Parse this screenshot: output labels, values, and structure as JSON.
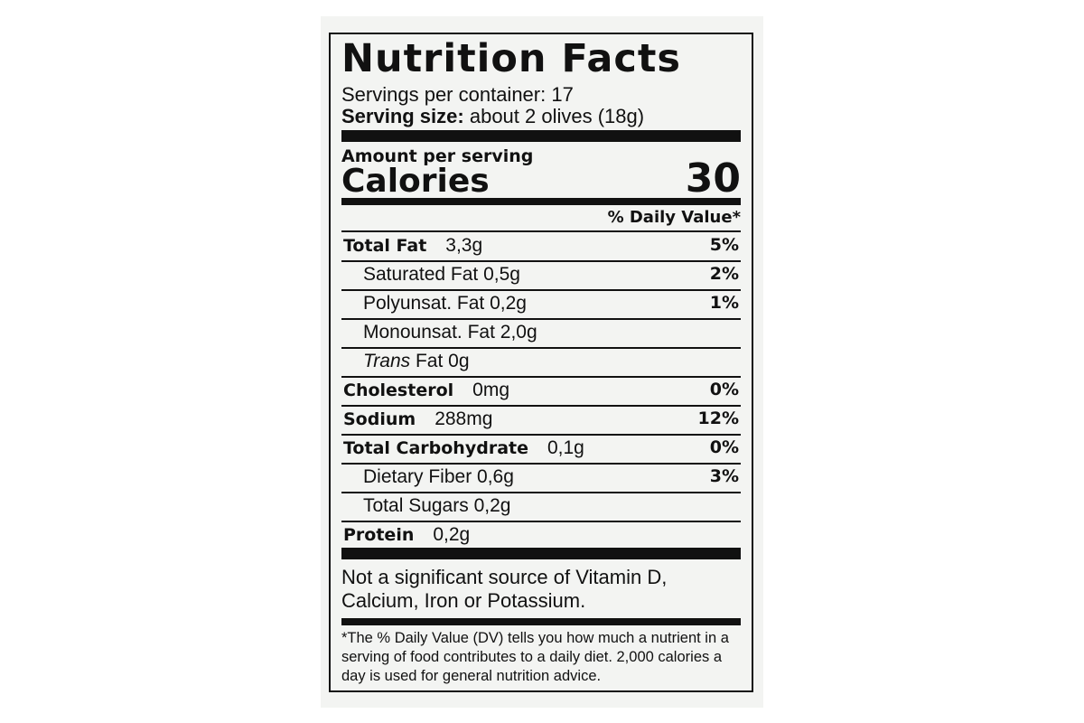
{
  "title": "Nutrition Facts",
  "servings_per_container": "Servings per container: 17",
  "serving_size_label": "Serving size:",
  "serving_size_value": "about 2 olives (18g)",
  "amount_per_serving": "Amount per serving",
  "calories_label": "Calories",
  "calories_value": "30",
  "daily_value_header": "% Daily Value*",
  "nutrients": [
    {
      "name": "Total Fat",
      "amount": "3,3g",
      "dv": "5%",
      "bold": true,
      "indent": false
    },
    {
      "name": "Saturated Fat",
      "amount": "0,5g",
      "dv": "2%",
      "bold": false,
      "indent": true
    },
    {
      "name": "Polyunsat. Fat",
      "amount": "0,2g",
      "dv": "1%",
      "bold": false,
      "indent": true
    },
    {
      "name": "Monounsat. Fat",
      "amount": "2,0g",
      "dv": "",
      "bold": false,
      "indent": true
    },
    {
      "name": "Trans",
      "name_suffix": "Fat",
      "amount": "0g",
      "dv": "",
      "bold": false,
      "indent": true
    },
    {
      "name": "Cholesterol",
      "amount": "0mg",
      "dv": "0%",
      "bold": true,
      "indent": false
    },
    {
      "name": "Sodium",
      "amount": "288mg",
      "dv": "12%",
      "bold": true,
      "indent": false
    },
    {
      "name": "Total Carbohydrate",
      "amount": "0,1g",
      "dv": "0%",
      "bold": true,
      "indent": false
    },
    {
      "name": "Dietary Fiber",
      "amount": "0,6g",
      "dv": "3%",
      "bold": false,
      "indent": true
    },
    {
      "name": "Total Sugars",
      "amount": "0,2g",
      "dv": "",
      "bold": false,
      "indent": true
    },
    {
      "name": "Protein",
      "amount": "0,2g",
      "dv": "",
      "bold": true,
      "indent": false
    }
  ],
  "vitamin_note": "Not a significant source of Vitamin D, Calcium, Iron or Potassium.",
  "footnote": "*The % Daily Value (DV) tells you how much a nutrient in a serving of food contributes to a daily diet. 2,000 calories a day is used for general nutrition advice."
}
